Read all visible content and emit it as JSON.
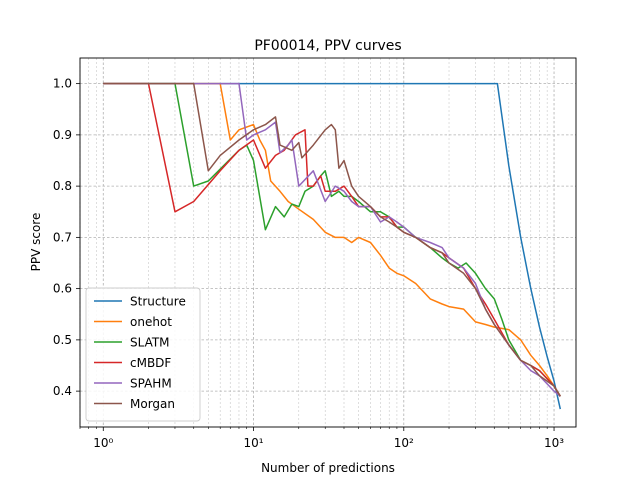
{
  "chart_data": {
    "type": "line",
    "title": "PF00014, PPV curves",
    "xlabel": "Number of predictions",
    "ylabel": "PPV score",
    "xscale": "log",
    "xlim": [
      0.7,
      1400
    ],
    "ylim": [
      0.33,
      1.05
    ],
    "grid": "on (major and minor)",
    "legend_placement": "lower-left",
    "x_ticks": [
      {
        "value": 1,
        "label": "10⁰"
      },
      {
        "value": 10,
        "label": "10¹"
      },
      {
        "value": 100,
        "label": "10²"
      },
      {
        "value": 1000,
        "label": "10³"
      }
    ],
    "y_ticks": [
      {
        "value": 0.4,
        "label": "0.4"
      },
      {
        "value": 0.5,
        "label": "0.5"
      },
      {
        "value": 0.6,
        "label": "0.6"
      },
      {
        "value": 0.7,
        "label": "0.7"
      },
      {
        "value": 0.8,
        "label": "0.8"
      },
      {
        "value": 0.9,
        "label": "0.9"
      },
      {
        "value": 1.0,
        "label": "1.0"
      }
    ],
    "series": [
      {
        "name": "Structure",
        "color": "#1f77b4",
        "x": [
          1,
          10,
          100,
          420,
          500,
          600,
          700,
          800,
          900,
          1000,
          1100
        ],
        "y": [
          1.0,
          1.0,
          1.0,
          1.0,
          0.84,
          0.7,
          0.6,
          0.525,
          0.467,
          0.42,
          0.365
        ]
      },
      {
        "name": "onehot",
        "color": "#ff7f0e",
        "x": [
          1,
          5,
          6,
          7,
          8,
          10,
          11,
          12,
          13,
          15,
          17,
          20,
          25,
          30,
          35,
          40,
          45,
          50,
          60,
          70,
          80,
          90,
          100,
          120,
          150,
          180,
          200,
          250,
          300,
          350,
          400,
          500,
          600,
          700,
          800,
          900,
          1000,
          1100
        ],
        "y": [
          1.0,
          1.0,
          1.0,
          0.89,
          0.91,
          0.92,
          0.89,
          0.87,
          0.81,
          0.79,
          0.77,
          0.755,
          0.735,
          0.71,
          0.7,
          0.7,
          0.69,
          0.7,
          0.69,
          0.665,
          0.64,
          0.63,
          0.625,
          0.61,
          0.58,
          0.57,
          0.565,
          0.56,
          0.535,
          0.53,
          0.525,
          0.52,
          0.5,
          0.47,
          0.45,
          0.43,
          0.41,
          0.39
        ]
      },
      {
        "name": "SLATM",
        "color": "#2ca02c",
        "x": [
          1,
          3,
          4,
          5,
          8,
          9,
          10,
          12,
          14,
          16,
          18,
          20,
          22,
          25,
          28,
          30,
          33,
          37,
          40,
          45,
          50,
          60,
          70,
          80,
          90,
          100,
          120,
          150,
          180,
          200,
          230,
          260,
          300,
          350,
          400,
          450,
          500,
          600,
          700,
          800,
          1000,
          1100
        ],
        "y": [
          1.0,
          1.0,
          0.8,
          0.81,
          0.87,
          0.88,
          0.85,
          0.715,
          0.76,
          0.74,
          0.765,
          0.76,
          0.79,
          0.8,
          0.82,
          0.83,
          0.78,
          0.79,
          0.78,
          0.78,
          0.77,
          0.75,
          0.75,
          0.74,
          0.72,
          0.72,
          0.7,
          0.68,
          0.66,
          0.65,
          0.64,
          0.65,
          0.63,
          0.6,
          0.58,
          0.54,
          0.5,
          0.46,
          0.45,
          0.44,
          0.41,
          0.39
        ]
      },
      {
        "name": "cMBDF",
        "color": "#d62728",
        "x": [
          1,
          2,
          3,
          4,
          6,
          8,
          10,
          12,
          14,
          16,
          19,
          22,
          23,
          25,
          28,
          30,
          35,
          40,
          45,
          50,
          60,
          70,
          80,
          90,
          100,
          120,
          150,
          180,
          200,
          250,
          300,
          350,
          400,
          500,
          600,
          700,
          800,
          1000,
          1100
        ],
        "y": [
          1.0,
          1.0,
          0.75,
          0.77,
          0.83,
          0.87,
          0.89,
          0.835,
          0.86,
          0.87,
          0.9,
          0.91,
          0.8,
          0.8,
          0.82,
          0.79,
          0.79,
          0.8,
          0.78,
          0.76,
          0.76,
          0.74,
          0.74,
          0.72,
          0.71,
          0.7,
          0.68,
          0.67,
          0.66,
          0.64,
          0.6,
          0.57,
          0.54,
          0.49,
          0.46,
          0.45,
          0.44,
          0.41,
          0.39
        ]
      },
      {
        "name": "SPAHM",
        "color": "#9467bd",
        "x": [
          1,
          8,
          9,
          10,
          12,
          14,
          15,
          17,
          18,
          20,
          25,
          30,
          35,
          40,
          45,
          50,
          60,
          70,
          80,
          90,
          100,
          120,
          150,
          180,
          200,
          250,
          300,
          350,
          400,
          500,
          600,
          700,
          800,
          1000,
          1100
        ],
        "y": [
          1.0,
          1.0,
          0.89,
          0.9,
          0.91,
          0.925,
          0.865,
          0.88,
          0.89,
          0.8,
          0.83,
          0.77,
          0.8,
          0.79,
          0.77,
          0.76,
          0.76,
          0.73,
          0.74,
          0.73,
          0.72,
          0.7,
          0.69,
          0.68,
          0.66,
          0.64,
          0.61,
          0.56,
          0.53,
          0.49,
          0.46,
          0.44,
          0.43,
          0.4,
          0.39
        ]
      },
      {
        "name": "Morgan",
        "color": "#8c564b",
        "x": [
          1,
          4,
          5,
          6,
          8,
          10,
          12,
          14,
          15,
          18,
          20,
          21,
          25,
          30,
          33,
          35,
          37,
          40,
          45,
          50,
          60,
          70,
          80,
          90,
          100,
          120,
          150,
          180,
          200,
          250,
          300,
          350,
          400,
          500,
          600,
          700,
          800,
          1000,
          1100
        ],
        "y": [
          1.0,
          1.0,
          0.83,
          0.86,
          0.89,
          0.91,
          0.92,
          0.935,
          0.88,
          0.87,
          0.885,
          0.855,
          0.88,
          0.91,
          0.92,
          0.91,
          0.835,
          0.85,
          0.8,
          0.78,
          0.76,
          0.74,
          0.73,
          0.72,
          0.71,
          0.7,
          0.68,
          0.67,
          0.65,
          0.63,
          0.6,
          0.56,
          0.53,
          0.49,
          0.46,
          0.45,
          0.43,
          0.41,
          0.39
        ]
      }
    ]
  }
}
